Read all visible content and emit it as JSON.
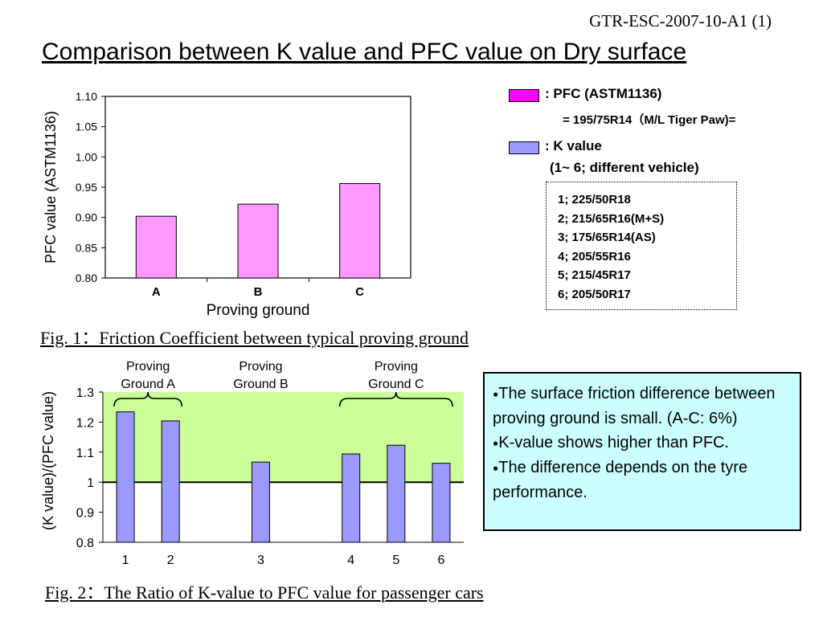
{
  "header": {
    "doc_id": "GTR-ESC-2007-10-A1 (1)",
    "title": "Comparison between K value and PFC value on Dry surface"
  },
  "chart_data": [
    {
      "type": "bar",
      "categories": [
        "A",
        "B",
        "C"
      ],
      "values": [
        0.902,
        0.922,
        0.956
      ],
      "xlabel": "Proving ground",
      "ylabel": "PFC value (ASTM1136)",
      "ylim": [
        0.8,
        1.1
      ],
      "yticks": [
        "0.80",
        "0.85",
        "0.90",
        "0.95",
        "1.00",
        "1.05",
        "1.10"
      ],
      "series_color": "#ff99ff",
      "caption": "Fig. 1：Friction Coefficient between typical proving ground"
    },
    {
      "type": "bar",
      "categories": [
        "1",
        "2",
        "3",
        "4",
        "5",
        "6"
      ],
      "values": [
        1.234,
        1.204,
        1.067,
        1.094,
        1.123,
        1.063
      ],
      "ylabel": "(K value)/(PFC value)",
      "ylim": [
        0.8,
        1.3
      ],
      "yticks": [
        "0.8",
        "0.9",
        "1",
        "1.1",
        "1.2",
        "1.3"
      ],
      "reference_line": 1,
      "shaded_range": [
        1,
        1.3
      ],
      "shaded_color": "#ccff99",
      "series_color": "#9999ff",
      "groups": [
        {
          "label_line1": "Proving",
          "label_line2": "Ground A",
          "members": [
            "1",
            "2"
          ]
        },
        {
          "label_line1": "Proving",
          "label_line2": "Ground B",
          "members": [
            "3"
          ]
        },
        {
          "label_line1": "Proving",
          "label_line2": "Ground C",
          "members": [
            "4",
            "5",
            "6"
          ]
        }
      ],
      "caption": "Fig. 2：The Ratio of K-value to PFC value for passenger cars"
    }
  ],
  "legend": {
    "pfc_label": ": PFC (ASTM1136)",
    "pfc_sub": "= 195/75R14（M/L  Tiger Paw)=",
    "pfc_color": "#ff00ff",
    "k_label": ": K value",
    "k_sub": "(1~ 6; different vehicle)",
    "k_color": "#9999ff"
  },
  "tires": [
    "1; 225/50R18",
    "2; 215/65R16(M+S)",
    "3; 175/65R14(AS)",
    "4; 205/55R16",
    "5; 215/45R17",
    "6; 205/50R17"
  ],
  "notes": [
    "The surface friction difference between proving ground is small. (A-C: 6%)",
    "K-value shows higher than PFC.",
    "The difference depends on the tyre performance."
  ]
}
